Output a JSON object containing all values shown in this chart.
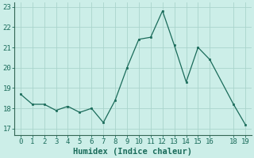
{
  "x": [
    0,
    1,
    2,
    3,
    4,
    5,
    6,
    7,
    8,
    9,
    10,
    11,
    12,
    13,
    14,
    15,
    16,
    18,
    19
  ],
  "y": [
    18.7,
    18.2,
    18.2,
    17.9,
    18.1,
    17.8,
    18.0,
    17.3,
    18.4,
    20.0,
    21.4,
    21.5,
    22.8,
    21.1,
    19.3,
    21.0,
    20.4,
    18.2,
    17.2
  ],
  "line_color": "#1a6b5a",
  "marker_color": "#1a6b5a",
  "bg_color": "#cceee8",
  "grid_color": "#aad4cc",
  "xlabel": "Humidex (Indice chaleur)",
  "xlim": [
    -0.5,
    19.5
  ],
  "ylim": [
    16.7,
    23.2
  ],
  "yticks": [
    17,
    18,
    19,
    20,
    21,
    22,
    23
  ],
  "xticks": [
    0,
    1,
    2,
    3,
    4,
    5,
    6,
    7,
    8,
    9,
    10,
    11,
    12,
    13,
    14,
    15,
    16,
    18,
    19
  ],
  "xlabel_fontsize": 7.5,
  "tick_fontsize": 6.5,
  "spine_color": "#336655"
}
